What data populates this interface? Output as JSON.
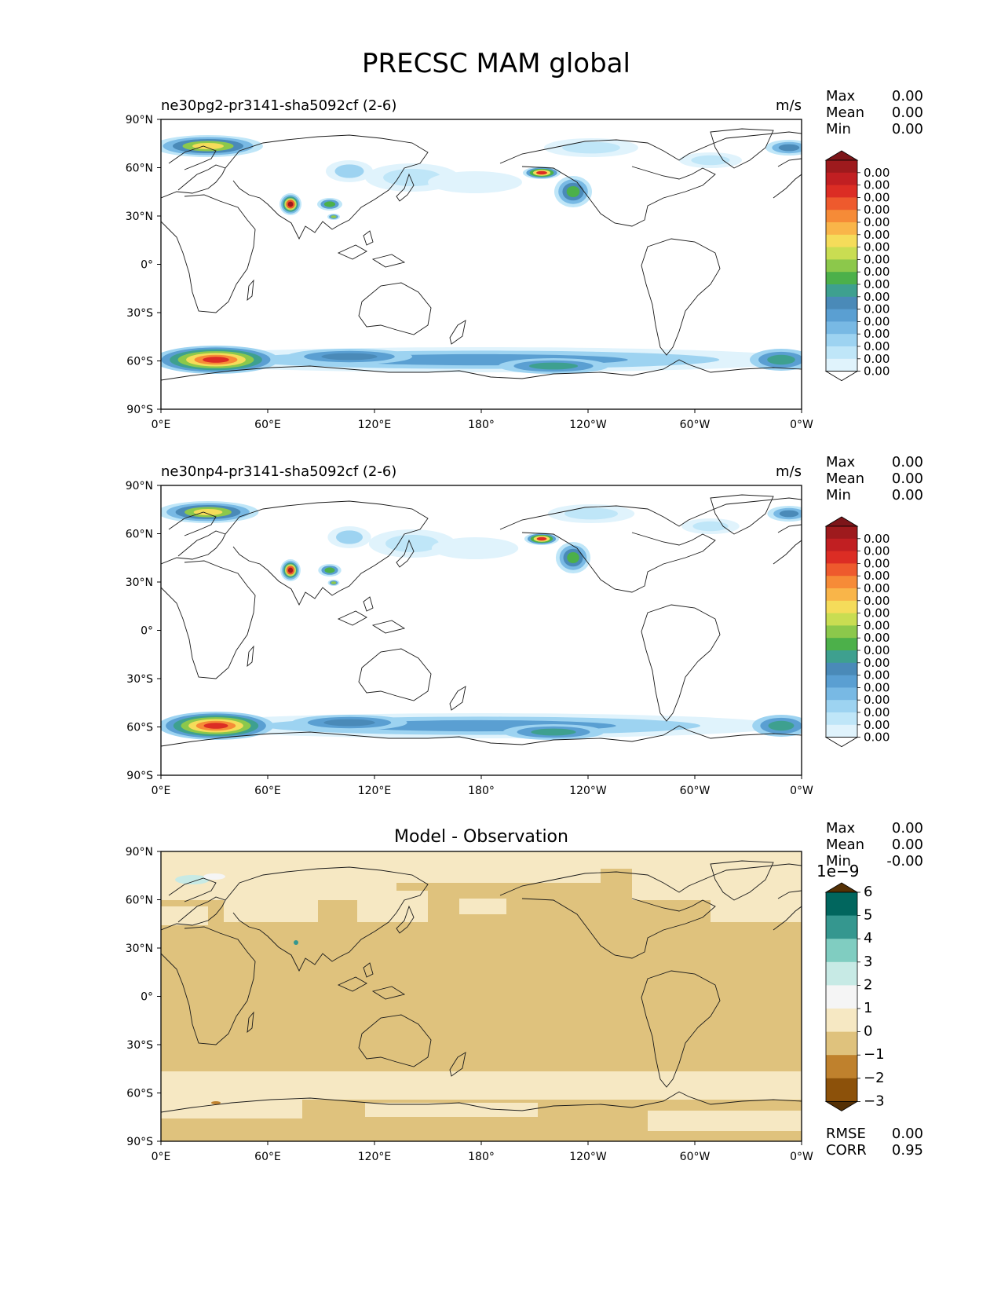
{
  "figure_title": "PRECSC MAM global",
  "panels": [
    {
      "left_label": "ne30pg2-pr3141-sha5092cf (2-6)",
      "center_label": "",
      "units": "m/s",
      "stats": [
        {
          "label": "Max",
          "value": "0.00"
        },
        {
          "label": "Mean",
          "value": "0.00"
        },
        {
          "label": "Min",
          "value": "0.00"
        }
      ],
      "colorbar": {
        "colors": [
          "#ffffff",
          "#e0f3fc",
          "#bfe6f8",
          "#9dd3f1",
          "#78b9e4",
          "#5a9fd2",
          "#4a8ab8",
          "#3ea08f",
          "#4cb04a",
          "#8cc84b",
          "#c9dd52",
          "#f5dc5a",
          "#f9b549",
          "#f68b37",
          "#ee5a2d",
          "#dc2d24",
          "#c11f22",
          "#9e1a1d",
          "#7d1519"
        ],
        "labels": [
          "0.00",
          "0.00",
          "0.00",
          "0.00",
          "0.00",
          "0.00",
          "0.00",
          "0.00",
          "0.00",
          "0.00",
          "0.00",
          "0.00",
          "0.00",
          "0.00",
          "0.00",
          "0.00",
          "0.00"
        ],
        "extend": "both",
        "exponent": ""
      }
    },
    {
      "left_label": "ne30np4-pr3141-sha5092cf (2-6)",
      "center_label": "",
      "units": "m/s",
      "stats": [
        {
          "label": "Max",
          "value": "0.00"
        },
        {
          "label": "Mean",
          "value": "0.00"
        },
        {
          "label": "Min",
          "value": "0.00"
        }
      ],
      "colorbar": {
        "colors": [
          "#ffffff",
          "#e0f3fc",
          "#bfe6f8",
          "#9dd3f1",
          "#78b9e4",
          "#5a9fd2",
          "#4a8ab8",
          "#3ea08f",
          "#4cb04a",
          "#8cc84b",
          "#c9dd52",
          "#f5dc5a",
          "#f9b549",
          "#f68b37",
          "#ee5a2d",
          "#dc2d24",
          "#c11f22",
          "#9e1a1d",
          "#7d1519"
        ],
        "labels": [
          "0.00",
          "0.00",
          "0.00",
          "0.00",
          "0.00",
          "0.00",
          "0.00",
          "0.00",
          "0.00",
          "0.00",
          "0.00",
          "0.00",
          "0.00",
          "0.00",
          "0.00",
          "0.00",
          "0.00"
        ],
        "extend": "both",
        "exponent": ""
      }
    },
    {
      "left_label": "",
      "center_label": "Model - Observation",
      "units": "",
      "stats": [
        {
          "label": "Max",
          "value": "0.00"
        },
        {
          "label": "Mean",
          "value": "0.00"
        },
        {
          "label": "Min",
          "value": "-0.00"
        }
      ],
      "colorbar": {
        "colors": [
          "#004d40",
          "#01665e",
          "#35978f",
          "#80cdc1",
          "#c7eae5",
          "#f5f5f5",
          "#f6e8c3",
          "#dfc27d",
          "#bf812d",
          "#8c510a",
          "#543005"
        ],
        "labels": [
          "6",
          "5",
          "4",
          "3",
          "2",
          "1",
          "0",
          "−1",
          "−2",
          "−3"
        ],
        "extend": "both",
        "exponent": "1e−9"
      },
      "extra_stats": [
        {
          "label": "RMSE",
          "value": "0.00"
        },
        {
          "label": "CORR",
          "value": "0.95"
        }
      ]
    }
  ],
  "axes": {
    "lat_ticks": [
      "90°N",
      "60°N",
      "30°N",
      "0°",
      "30°S",
      "60°S",
      "90°S"
    ],
    "lon_ticks": [
      "0°E",
      "60°E",
      "120°E",
      "180°",
      "120°W",
      "60°W",
      "0°W"
    ]
  }
}
